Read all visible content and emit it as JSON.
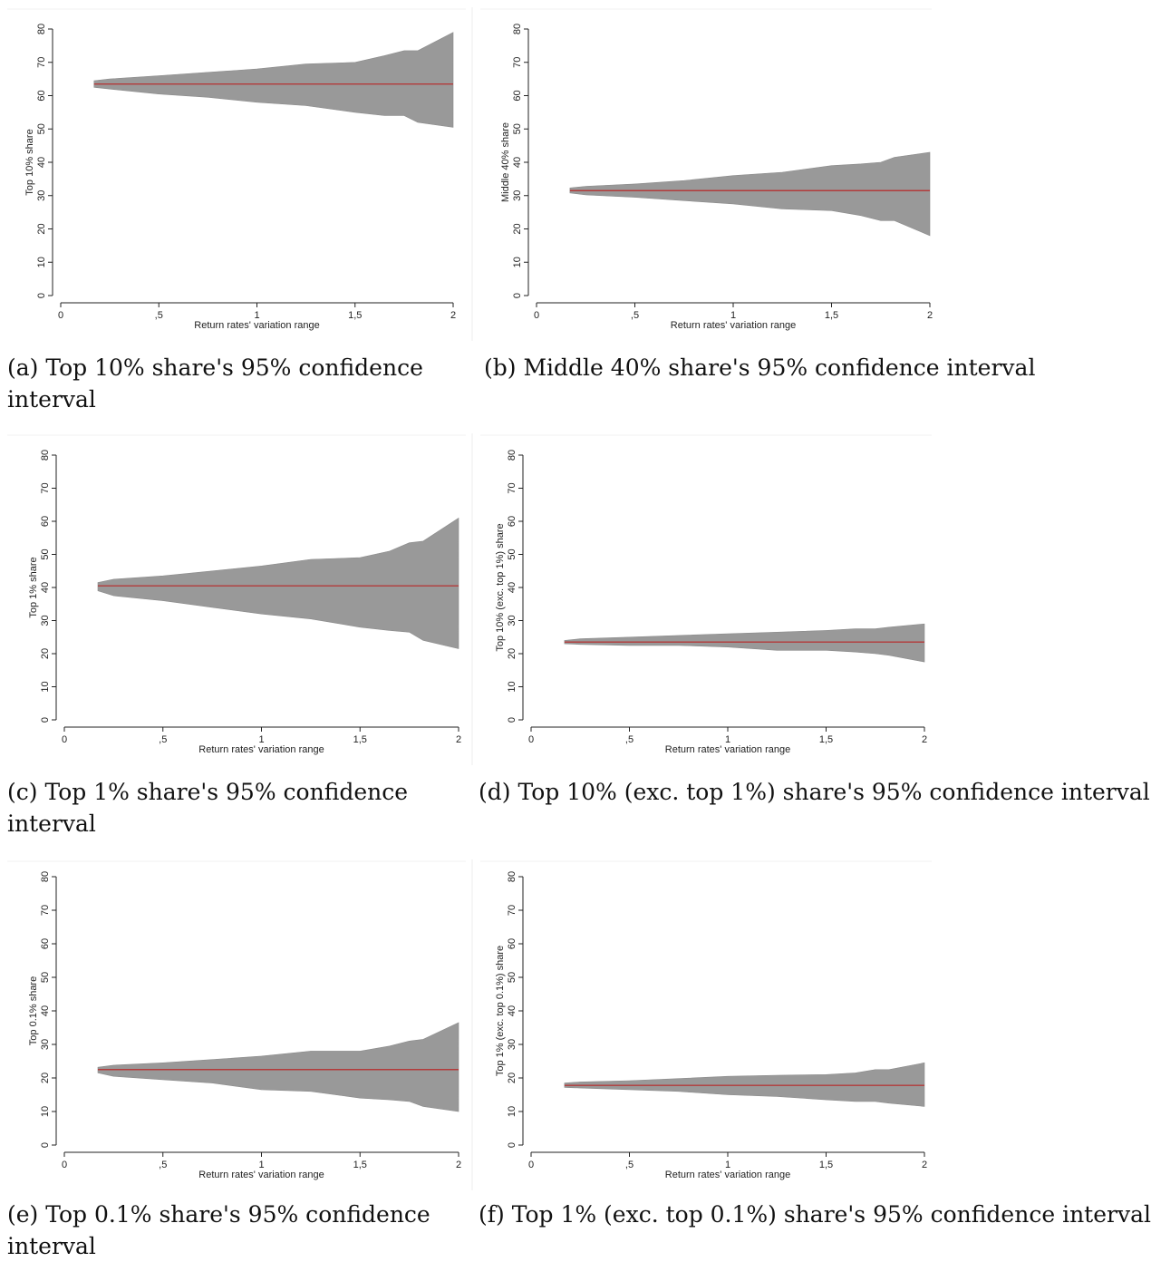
{
  "figure": {
    "xlabel": "Return rates' variation range",
    "xticks": [
      {
        "value": 0,
        "label": "0"
      },
      {
        "value": 0.5,
        "label": ",5"
      },
      {
        "value": 1,
        "label": "1"
      },
      {
        "value": 1.5,
        "label": "1,5"
      },
      {
        "value": 2,
        "label": "2"
      }
    ],
    "yticks": [
      0,
      10,
      20,
      30,
      40,
      50,
      60,
      70,
      80
    ],
    "colors": {
      "band": "#999999",
      "line": "#b33a3a",
      "axis": "#222222"
    }
  },
  "chart_data": [
    {
      "id": "a",
      "type": "area",
      "caption": "(a) Top 10% share's 95% confidence interval",
      "ylabel": "Top 10% share",
      "xlabel": "Return rates' variation range",
      "xlim": [
        0,
        2
      ],
      "ylim": [
        0,
        80
      ],
      "center": 63.5,
      "x": [
        0.17,
        0.25,
        0.5,
        0.75,
        1.0,
        1.25,
        1.5,
        1.65,
        1.75,
        1.82,
        2.0
      ],
      "upper": [
        64.5,
        65.0,
        66.0,
        67.0,
        68.0,
        69.5,
        70.0,
        72.0,
        73.5,
        73.5,
        79.0
      ],
      "lower": [
        62.5,
        62.0,
        60.5,
        59.5,
        58.0,
        57.0,
        55.0,
        54.0,
        54.0,
        52.0,
        50.5
      ]
    },
    {
      "id": "b",
      "type": "area",
      "caption": "(b) Middle 40% share's 95% confidence interval",
      "ylabel": "Middle 40% share",
      "xlabel": "Return rates' variation range",
      "xlim": [
        0,
        2
      ],
      "ylim": [
        0,
        80
      ],
      "center": 31.5,
      "x": [
        0.17,
        0.25,
        0.5,
        0.75,
        1.0,
        1.25,
        1.5,
        1.65,
        1.75,
        1.82,
        2.0
      ],
      "upper": [
        32.3,
        32.8,
        33.5,
        34.5,
        36.0,
        37.0,
        39.0,
        39.5,
        40.0,
        41.5,
        43.0
      ],
      "lower": [
        30.8,
        30.2,
        29.5,
        28.5,
        27.5,
        26.0,
        25.5,
        24.0,
        22.5,
        22.5,
        18.0
      ]
    },
    {
      "id": "c",
      "type": "area",
      "caption": "(c) Top 1% share's 95% confidence interval",
      "ylabel": "Top 1% share",
      "xlabel": "Return rates' variation range",
      "xlim": [
        0,
        2
      ],
      "ylim": [
        0,
        80
      ],
      "center": 40.5,
      "x": [
        0.17,
        0.25,
        0.5,
        0.75,
        1.0,
        1.25,
        1.5,
        1.65,
        1.75,
        1.82,
        2.0
      ],
      "upper": [
        41.5,
        42.5,
        43.5,
        45.0,
        46.5,
        48.5,
        49.0,
        51.0,
        53.5,
        54.0,
        61.0
      ],
      "lower": [
        39.0,
        37.5,
        36.0,
        34.0,
        32.0,
        30.5,
        28.0,
        27.0,
        26.5,
        24.0,
        21.5
      ]
    },
    {
      "id": "d",
      "type": "area",
      "caption": "(d) Top 10% (exc. top 1%) share's 95% confidence interval",
      "ylabel": "Top 10% (exc. top 1%) share",
      "xlabel": "Return rates' variation range",
      "xlim": [
        0,
        2
      ],
      "ylim": [
        0,
        80
      ],
      "center": 23.5,
      "x": [
        0.17,
        0.25,
        0.5,
        0.75,
        1.0,
        1.25,
        1.5,
        1.65,
        1.75,
        1.82,
        2.0
      ],
      "upper": [
        24.0,
        24.5,
        25.0,
        25.5,
        26.0,
        26.5,
        27.0,
        27.5,
        27.5,
        28.0,
        29.0
      ],
      "lower": [
        23.0,
        22.8,
        22.5,
        22.5,
        22.0,
        21.0,
        21.0,
        20.5,
        20.0,
        19.5,
        17.5
      ]
    },
    {
      "id": "e",
      "type": "area",
      "caption": "(e) Top 0.1% share's 95% confidence interval",
      "ylabel": "Top 0.1% share",
      "xlabel": "Return rates' variation range",
      "xlim": [
        0,
        2
      ],
      "ylim": [
        0,
        80
      ],
      "center": 22.5,
      "x": [
        0.17,
        0.25,
        0.5,
        0.75,
        1.0,
        1.25,
        1.5,
        1.65,
        1.75,
        1.82,
        2.0
      ],
      "upper": [
        23.2,
        23.8,
        24.5,
        25.5,
        26.5,
        28.0,
        28.0,
        29.5,
        31.0,
        31.5,
        36.5
      ],
      "lower": [
        21.5,
        20.5,
        19.5,
        18.5,
        16.5,
        16.0,
        14.0,
        13.5,
        13.0,
        11.5,
        10.0
      ]
    },
    {
      "id": "f",
      "type": "area",
      "caption": "(f) Top 1% (exc. top 0.1%) share's 95% confidence interval",
      "ylabel": "Top 1% (exc. top 0.1%) share",
      "xlabel": "Return rates' variation range",
      "xlim": [
        0,
        2
      ],
      "ylim": [
        0,
        80
      ],
      "center": 17.8,
      "x": [
        0.17,
        0.25,
        0.5,
        0.75,
        1.0,
        1.25,
        1.5,
        1.65,
        1.75,
        1.82,
        2.0
      ],
      "upper": [
        18.5,
        18.8,
        19.2,
        19.8,
        20.5,
        20.8,
        21.0,
        21.5,
        22.5,
        22.5,
        24.5
      ],
      "lower": [
        17.2,
        17.0,
        16.5,
        16.0,
        15.0,
        14.5,
        13.5,
        13.0,
        13.0,
        12.5,
        11.5
      ]
    }
  ]
}
